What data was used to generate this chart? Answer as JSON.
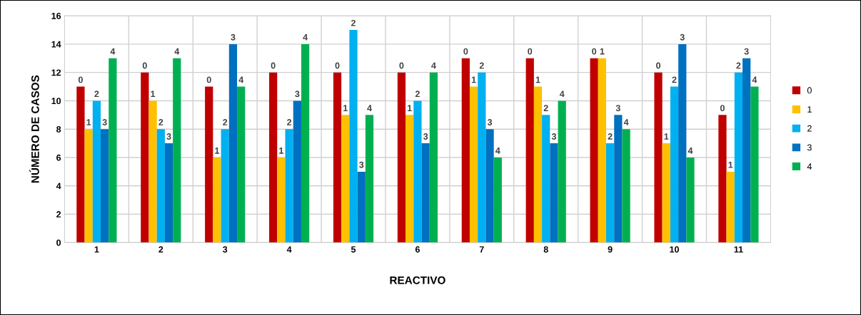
{
  "chart_data": {
    "type": "bar",
    "xlabel": "REACTIVO",
    "ylabel": "NÚMERO DE CASOS",
    "categories": [
      "1",
      "2",
      "3",
      "4",
      "5",
      "6",
      "7",
      "8",
      "9",
      "10",
      "11"
    ],
    "series": [
      {
        "name": "0",
        "color": "#c00000",
        "values": [
          11,
          12,
          11,
          12,
          12,
          12,
          13,
          13,
          13,
          12,
          9
        ]
      },
      {
        "name": "1",
        "color": "#ffc000",
        "values": [
          8,
          10,
          6,
          6,
          9,
          9,
          11,
          11,
          13,
          7,
          5
        ]
      },
      {
        "name": "2",
        "color": "#00b0f0",
        "values": [
          10,
          8,
          8,
          8,
          15,
          10,
          12,
          9,
          7,
          11,
          12
        ]
      },
      {
        "name": "3",
        "color": "#0070c0",
        "values": [
          8,
          7,
          14,
          10,
          5,
          7,
          8,
          7,
          9,
          14,
          13
        ]
      },
      {
        "name": "4",
        "color": "#00b050",
        "values": [
          13,
          13,
          11,
          14,
          9,
          12,
          6,
          10,
          8,
          6,
          11
        ]
      }
    ],
    "annotations": [
      "0",
      "0",
      "0",
      "0",
      "0",
      "0",
      "0",
      "0",
      "0",
      "0",
      "0",
      "1",
      "1",
      "1",
      "1",
      "1",
      "1",
      "1",
      "1",
      "1",
      "1",
      "1",
      "2",
      "2",
      "2",
      "2",
      "2",
      "2",
      "2",
      "2",
      "2",
      "2",
      "2",
      "3",
      "3",
      "3",
      "3",
      "3",
      "3",
      "3",
      "3",
      "3",
      "3",
      "3",
      "4",
      "4",
      "4",
      "4",
      "4",
      "4",
      "4",
      "4",
      "4",
      "4",
      "4"
    ],
    "ylim": [
      0,
      16
    ],
    "yticks": [
      0,
      2,
      4,
      6,
      8,
      10,
      12,
      14,
      16
    ],
    "grid": true,
    "legend": "right"
  }
}
